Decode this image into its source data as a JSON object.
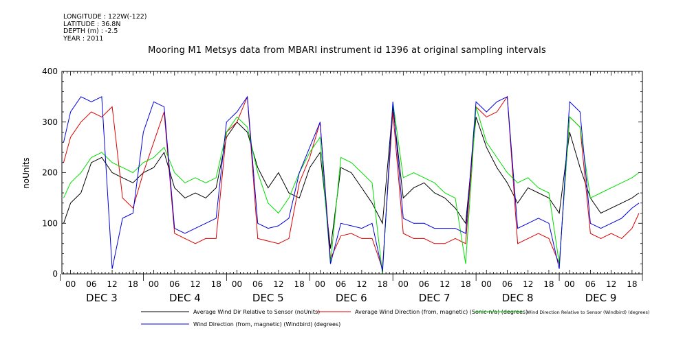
{
  "meta": {
    "longitude": "LONGITUDE : 122W(-122)",
    "latitude": "LATITUDE : 36.8N",
    "depth": "DEPTH (m) : -2.5",
    "year": "YEAR : 2011"
  },
  "chart_data": {
    "type": "line",
    "title": "Mooring M1 Metsys data from MBARI instrument id 1396 at original sampling intervals",
    "ylabel": "noUnits",
    "xlabel": "",
    "ylim": [
      0,
      400
    ],
    "yticks": [
      0,
      100,
      200,
      300,
      400
    ],
    "x_hour_labels": [
      "00",
      "06",
      "12",
      "18",
      "00",
      "06",
      "12",
      "18",
      "00",
      "06",
      "12",
      "18",
      "00",
      "06",
      "12",
      "18",
      "00",
      "06",
      "12",
      "18",
      "00",
      "06",
      "12",
      "18",
      "00",
      "06",
      "12",
      "18"
    ],
    "x_day_labels": [
      "DEC  3",
      "DEC  4",
      "DEC  5",
      "DEC  6",
      "DEC  7",
      "DEC  8",
      "DEC  9"
    ],
    "x_range_hours": [
      -2.5,
      165
    ],
    "series": [
      {
        "name": "Average Wind Dir Relative to Sensor (noUnits)",
        "color": "#000000",
        "x": [
          -2,
          0,
          3,
          6,
          9,
          12,
          15,
          18,
          21,
          24,
          27,
          30,
          33,
          36,
          39,
          42,
          45,
          48,
          51,
          54,
          57,
          60,
          63,
          66,
          69,
          72,
          75,
          78,
          81,
          84,
          87,
          90,
          93,
          96,
          99,
          102,
          105,
          108,
          111,
          114,
          117,
          120,
          123,
          126,
          129,
          132,
          135,
          138,
          141,
          144,
          147,
          150,
          153,
          156,
          159,
          162,
          164
        ],
        "y": [
          100,
          140,
          160,
          220,
          230,
          200,
          190,
          180,
          200,
          210,
          240,
          170,
          150,
          160,
          150,
          170,
          270,
          300,
          280,
          210,
          170,
          200,
          160,
          150,
          210,
          240,
          50,
          210,
          200,
          170,
          140,
          100,
          330,
          150,
          170,
          180,
          160,
          150,
          130,
          100,
          310,
          250,
          210,
          180,
          140,
          170,
          160,
          150,
          120,
          280,
          210,
          150,
          120,
          130,
          140,
          150,
          160
        ]
      },
      {
        "name": "Average Wind Direction (from, magnetic) (Sonic-n/a) (degrees)",
        "color": "#dd0000",
        "x": [
          -2,
          0,
          3,
          6,
          9,
          12,
          15,
          18,
          21,
          24,
          27,
          30,
          33,
          36,
          39,
          42,
          45,
          48,
          51,
          54,
          57,
          60,
          63,
          66,
          69,
          72,
          75,
          78,
          81,
          84,
          87,
          90,
          93,
          96,
          99,
          102,
          105,
          108,
          111,
          114,
          117,
          120,
          123,
          126,
          129,
          132,
          135,
          138,
          141,
          144,
          147,
          150,
          153,
          156,
          159,
          162,
          164
        ],
        "y": [
          220,
          270,
          300,
          320,
          310,
          330,
          150,
          130,
          200,
          260,
          320,
          80,
          70,
          60,
          70,
          70,
          280,
          300,
          350,
          70,
          65,
          60,
          70,
          180,
          230,
          300,
          30,
          75,
          80,
          70,
          70,
          10,
          320,
          80,
          70,
          70,
          60,
          60,
          70,
          60,
          330,
          310,
          320,
          350,
          60,
          70,
          80,
          70,
          20,
          310,
          290,
          80,
          70,
          80,
          70,
          90,
          120
        ]
      },
      {
        "name": "Wind Direction Relative to Sensor (Windbird) (degrees)",
        "color": "#00dd00",
        "x": [
          -2,
          0,
          3,
          6,
          9,
          12,
          15,
          18,
          21,
          24,
          27,
          30,
          33,
          36,
          39,
          42,
          45,
          48,
          51,
          54,
          57,
          60,
          63,
          66,
          69,
          72,
          75,
          78,
          81,
          84,
          87,
          90,
          93,
          96,
          99,
          102,
          105,
          108,
          111,
          114,
          117,
          120,
          123,
          126,
          129,
          132,
          135,
          138,
          141,
          144,
          147,
          150,
          153,
          156,
          159,
          162,
          164
        ],
        "y": [
          150,
          180,
          200,
          230,
          240,
          220,
          210,
          200,
          220,
          230,
          250,
          200,
          180,
          190,
          180,
          190,
          280,
          310,
          290,
          200,
          140,
          120,
          150,
          200,
          240,
          270,
          20,
          230,
          220,
          200,
          180,
          0,
          340,
          190,
          200,
          190,
          180,
          160,
          150,
          20,
          330,
          260,
          230,
          200,
          180,
          190,
          170,
          160,
          20,
          310,
          290,
          150,
          160,
          170,
          180,
          190,
          200
        ]
      },
      {
        "name": "Wind Direction (from, magnetic) (Windbird) (degrees)",
        "color": "#0000dd",
        "x": [
          -2,
          0,
          3,
          6,
          9,
          12,
          15,
          18,
          21,
          24,
          27,
          30,
          33,
          36,
          39,
          42,
          45,
          48,
          51,
          54,
          57,
          60,
          63,
          66,
          69,
          72,
          75,
          78,
          81,
          84,
          87,
          90,
          93,
          96,
          99,
          102,
          105,
          108,
          111,
          114,
          117,
          120,
          123,
          126,
          129,
          132,
          135,
          138,
          141,
          144,
          147,
          150,
          153,
          156,
          159,
          162,
          164
        ],
        "y": [
          260,
          320,
          350,
          340,
          350,
          10,
          110,
          120,
          280,
          340,
          330,
          90,
          80,
          90,
          100,
          110,
          300,
          320,
          350,
          100,
          90,
          95,
          110,
          200,
          250,
          300,
          20,
          100,
          95,
          90,
          100,
          5,
          340,
          110,
          100,
          100,
          90,
          90,
          90,
          80,
          340,
          320,
          340,
          350,
          90,
          100,
          110,
          100,
          10,
          340,
          320,
          100,
          90,
          100,
          110,
          130,
          140
        ]
      }
    ]
  }
}
